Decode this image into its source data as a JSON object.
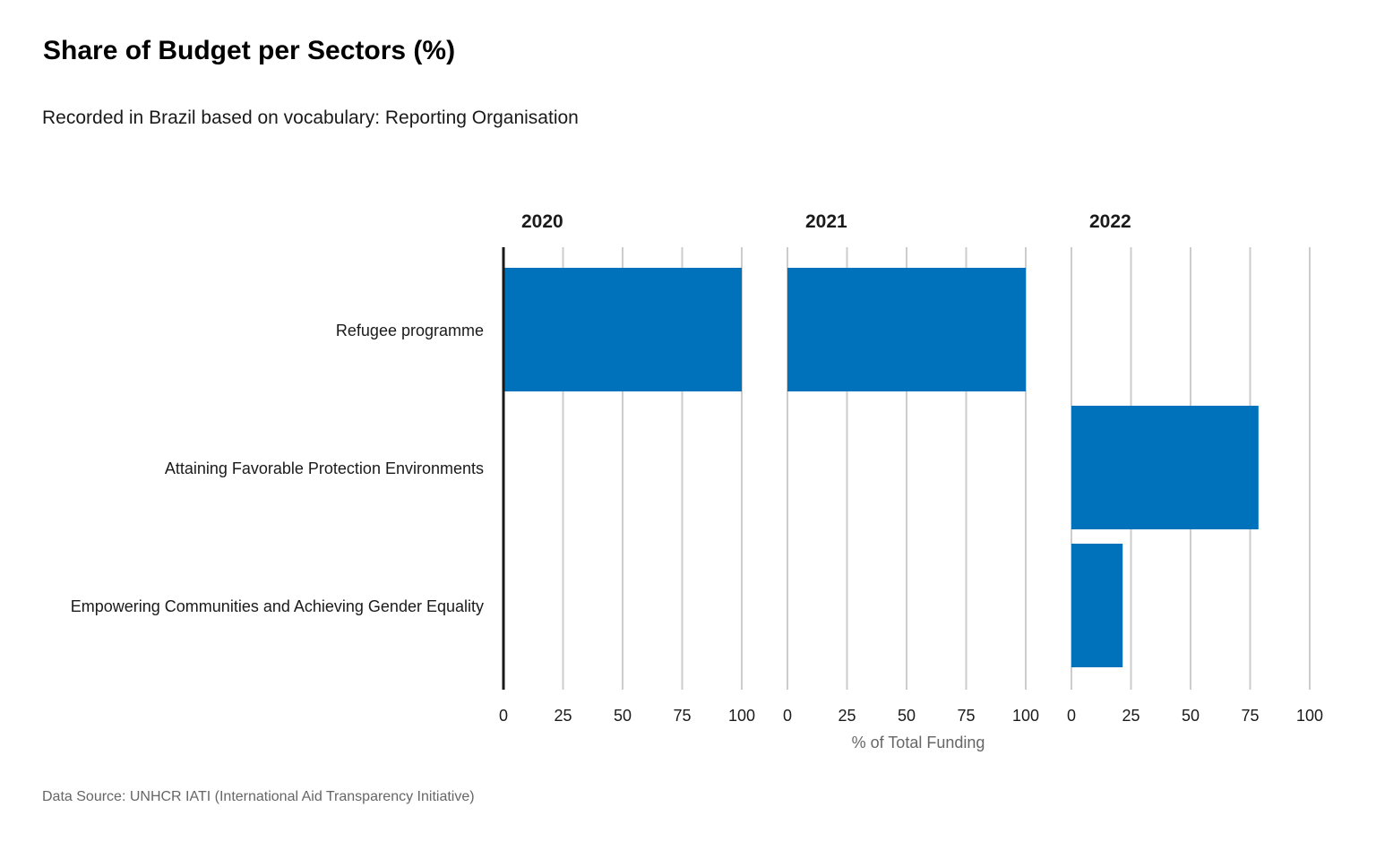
{
  "title": "Share of Budget per Sectors (%)",
  "subtitle": "Recorded in Brazil based on vocabulary: Reporting Organisation",
  "source": "Data Source: UNHCR IATI (International Aid Transparency Initiative)",
  "colors": {
    "bar": "#0072bc",
    "grid": "#cccccc",
    "axis": "#1a1a1a",
    "muted": "#666666"
  },
  "chart_data": {
    "type": "bar",
    "orientation": "horizontal",
    "facet_by": "year",
    "xlabel": "% of Total Funding",
    "ylabel": "",
    "xlim": [
      0,
      100
    ],
    "x_ticks": [
      0,
      25,
      50,
      75,
      100
    ],
    "grid": true,
    "categories": [
      "Refugee programme",
      "Attaining Favorable Protection Environments",
      "Empowering Communities and Achieving Gender Equality"
    ],
    "facets": [
      {
        "label": "2020",
        "values": [
          100,
          0,
          0
        ]
      },
      {
        "label": "2021",
        "values": [
          100,
          0,
          0
        ]
      },
      {
        "label": "2022",
        "values": [
          0,
          78.5,
          21.5
        ]
      }
    ]
  }
}
